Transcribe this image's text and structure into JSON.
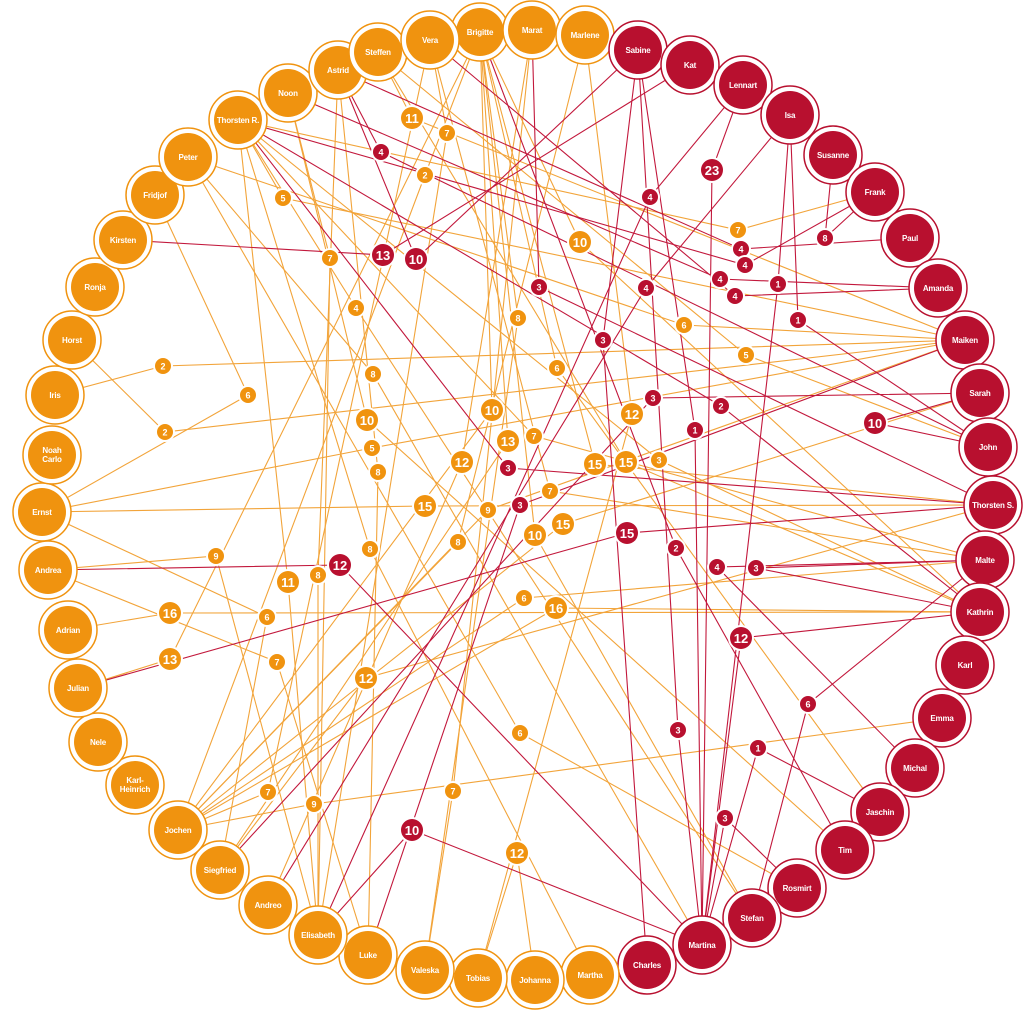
{
  "nodes": [
    {
      "label": "Brigitte"
    },
    {
      "label": "Marat"
    },
    {
      "label": "Marlene"
    },
    {
      "label": "Sabine"
    },
    {
      "label": "Kat"
    },
    {
      "label": "Lennart"
    },
    {
      "label": "Isa"
    },
    {
      "label": "Susanne"
    },
    {
      "label": "Frank"
    },
    {
      "label": "Paul"
    },
    {
      "label": "Amanda"
    },
    {
      "label": "Maiken"
    },
    {
      "label": "Sarah"
    },
    {
      "label": "John"
    },
    {
      "label": "Thorsten S."
    },
    {
      "label": "Malte"
    },
    {
      "label": "Kathrin"
    },
    {
      "label": "Karl"
    },
    {
      "label": "Emma"
    },
    {
      "label": "Michal"
    },
    {
      "label": "Jaschin"
    },
    {
      "label": "Tim"
    },
    {
      "label": "Rosmirt"
    },
    {
      "label": "Stefan"
    },
    {
      "label": "Martina"
    },
    {
      "label": "Charles"
    },
    {
      "label": "Martha"
    },
    {
      "label": "Johanna"
    },
    {
      "label": "Tobias"
    },
    {
      "label": "Valeska"
    },
    {
      "label": "Luke"
    },
    {
      "label": "Elisabeth"
    },
    {
      "label": "Andreo"
    },
    {
      "label": "Siegfried"
    },
    {
      "label": "Jochen"
    },
    {
      "label": "Karl-Heinrich"
    },
    {
      "label": "Nele"
    },
    {
      "label": "Julian"
    },
    {
      "label": "Adrian"
    },
    {
      "label": "Andrea"
    },
    {
      "label": "Ernst"
    },
    {
      "label": "Noah Carlo"
    },
    {
      "label": "Iris"
    },
    {
      "label": "Horst"
    },
    {
      "label": "Ronja"
    },
    {
      "label": "Kirsten"
    },
    {
      "label": "Fridjof"
    },
    {
      "label": "Peter"
    },
    {
      "label": "Thorsten R."
    },
    {
      "label": "Noon"
    },
    {
      "label": "Astrid"
    },
    {
      "label": "Steffen"
    },
    {
      "label": "Vera"
    }
  ],
  "edges": [
    {
      "label": 11
    },
    {
      "label": 7
    },
    {
      "label": 2
    },
    {
      "label": 5
    },
    {
      "label": 7
    },
    {
      "label": 10
    },
    {
      "label": 7
    },
    {
      "label": 4
    },
    {
      "label": 8
    },
    {
      "label": 6
    },
    {
      "label": 5
    },
    {
      "label": 2
    },
    {
      "label": 6
    },
    {
      "label": 8
    },
    {
      "label": 6
    },
    {
      "label": 10
    },
    {
      "label": 10
    },
    {
      "label": 12
    },
    {
      "label": 2
    },
    {
      "label": 13
    },
    {
      "label": 7
    },
    {
      "label": 5
    },
    {
      "label": 12
    },
    {
      "label": 15
    },
    {
      "label": 15
    },
    {
      "label": 3
    },
    {
      "label": 8
    },
    {
      "label": 7
    },
    {
      "label": 9
    },
    {
      "label": 15
    },
    {
      "label": 10
    },
    {
      "label": 15
    },
    {
      "label": 8
    },
    {
      "label": 8
    },
    {
      "label": 9
    },
    {
      "label": 8
    },
    {
      "label": 11
    },
    {
      "label": 6
    },
    {
      "label": 16
    },
    {
      "label": 16
    },
    {
      "label": 6
    },
    {
      "label": 13
    },
    {
      "label": 7
    },
    {
      "label": 12
    },
    {
      "label": 6
    },
    {
      "label": 7
    },
    {
      "label": 9
    },
    {
      "label": 7
    },
    {
      "label": 12
    },
    {
      "label": 4
    },
    {
      "label": 23
    },
    {
      "label": 4
    },
    {
      "label": 13
    },
    {
      "label": 10
    },
    {
      "label": 4
    },
    {
      "label": 4
    },
    {
      "label": 8
    },
    {
      "label": 4
    },
    {
      "label": 4
    },
    {
      "label": 3
    },
    {
      "label": 4
    },
    {
      "label": 1
    },
    {
      "label": 1
    },
    {
      "label": 3
    },
    {
      "label": 3
    },
    {
      "label": 2
    },
    {
      "label": 10
    },
    {
      "label": 1
    },
    {
      "label": 3
    },
    {
      "label": 3
    },
    {
      "label": 15
    },
    {
      "label": 2
    },
    {
      "label": 4
    },
    {
      "label": 3
    },
    {
      "label": 12
    },
    {
      "label": 12
    },
    {
      "label": 6
    },
    {
      "label": 3
    },
    {
      "label": 1
    },
    {
      "label": 3
    },
    {
      "label": 10
    }
  ]
}
